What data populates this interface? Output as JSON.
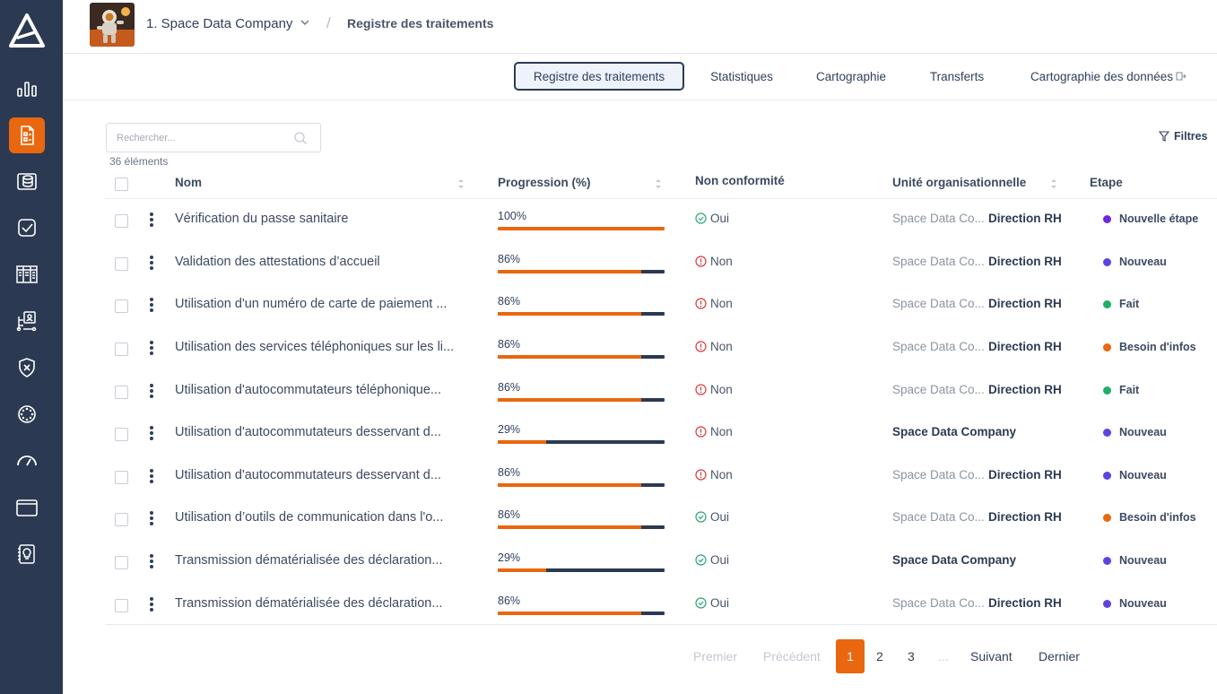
{
  "header": {
    "company_name": "1. Space Data Company",
    "breadcrumb_separator": "/",
    "breadcrumb_current": "Registre des traitements"
  },
  "tabs": [
    {
      "label": "Registre des traitements",
      "active": true
    },
    {
      "label": "Statistiques",
      "active": false
    },
    {
      "label": "Cartographie",
      "active": false
    },
    {
      "label": "Transferts",
      "active": false
    },
    {
      "label": "Cartographie des données",
      "active": false
    }
  ],
  "search": {
    "placeholder": "Rechercher..."
  },
  "count_text": "36 éléments",
  "filters_label": "Filtres",
  "columns": {
    "name": "Nom",
    "progress": "Progression (%)",
    "nonconformity": "Non conformité",
    "unit": "Unité organisationnelle",
    "stage": "Etape"
  },
  "rows": [
    {
      "name": "Vérification du passe sanitaire",
      "progress": "100%",
      "progress_value": 100,
      "nc": "Oui",
      "unit_prefix": "Space Data Co...",
      "unit": "Direction RH",
      "stage": "Nouvelle étape"
    },
    {
      "name": "Validation des attestations d’accueil",
      "progress": "86%",
      "progress_value": 86,
      "nc": "Non",
      "unit_prefix": "Space Data Co...",
      "unit": "Direction RH",
      "stage": "Nouveau"
    },
    {
      "name": "Utilisation d'un numéro de carte de paiement ...",
      "progress": "86%",
      "progress_value": 86,
      "nc": "Non",
      "unit_prefix": "Space Data Co...",
      "unit": "Direction RH",
      "stage": "Fait"
    },
    {
      "name": "Utilisation des services téléphoniques sur les li...",
      "progress": "86%",
      "progress_value": 86,
      "nc": "Non",
      "unit_prefix": "Space Data Co...",
      "unit": "Direction RH",
      "stage": "Besoin d'infos"
    },
    {
      "name": "Utilisation d'autocommutateurs téléphonique...",
      "progress": "86%",
      "progress_value": 86,
      "nc": "Non",
      "unit_prefix": "Space Data Co...",
      "unit": "Direction RH",
      "stage": "Fait"
    },
    {
      "name": "Utilisation d'autocommutateurs desservant d...",
      "progress": "29%",
      "progress_value": 29,
      "nc": "Non",
      "unit_prefix": "",
      "unit": "Space Data Company",
      "stage": "Nouveau"
    },
    {
      "name": "Utilisation d'autocommutateurs desservant d...",
      "progress": "86%",
      "progress_value": 86,
      "nc": "Non",
      "unit_prefix": "Space Data Co...",
      "unit": "Direction RH",
      "stage": "Nouveau"
    },
    {
      "name": "Utilisation d’outils de communication dans l'o...",
      "progress": "86%",
      "progress_value": 86,
      "nc": "Oui",
      "unit_prefix": "Space Data Co...",
      "unit": "Direction RH",
      "stage": "Besoin d'infos"
    },
    {
      "name": "Transmission dématérialisée des déclaration...",
      "progress": "29%",
      "progress_value": 29,
      "nc": "Oui",
      "unit_prefix": "",
      "unit": "Space Data Company",
      "stage": "Nouveau"
    },
    {
      "name": "Transmission dématérialisée des déclaration...",
      "progress": "86%",
      "progress_value": 86,
      "nc": "Oui",
      "unit_prefix": "Space Data Co...",
      "unit": "Direction RH",
      "stage": "Nouveau"
    }
  ],
  "stage_colors": {
    "Nouvelle étape": "#6d28d9",
    "Nouveau": "#5b45e0",
    "Fait": "#1fae6b",
    "Besoin d'infos": "#e8670f"
  },
  "nc_colors": {
    "Oui": "#2aa673",
    "Non": "#d93b3b"
  },
  "accent_color": "#e8670f",
  "sidebar_icons": [
    "logo-icon",
    "chart-icon",
    "register-icon",
    "database-icon",
    "checklist-icon",
    "grid-icon",
    "flow-icon",
    "shield-x-icon",
    "wheel-icon",
    "gauge-icon",
    "folder-icon",
    "ideas-icon"
  ],
  "pagination": {
    "first": "Premier",
    "prev": "Précédent",
    "pages": [
      "1",
      "2",
      "3"
    ],
    "current": "1",
    "ellipsis": "...",
    "next": "Suivant",
    "last": "Dernier"
  }
}
